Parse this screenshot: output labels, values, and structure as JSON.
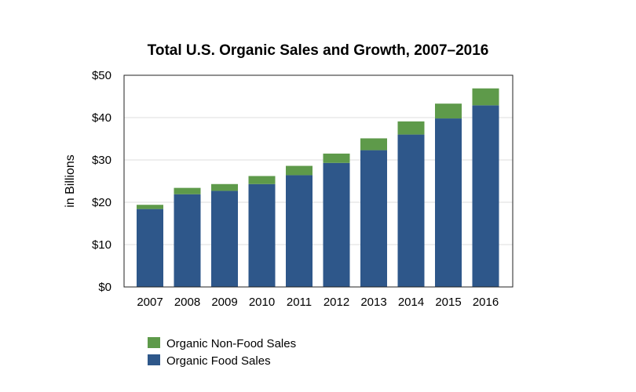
{
  "chart_data": {
    "type": "bar",
    "stacked": true,
    "title": "Total U.S. Organic Sales and Growth, 2007–2016",
    "xlabel": "",
    "ylabel": "in Billions",
    "ylim": [
      0,
      50
    ],
    "yticks": [
      0,
      10,
      20,
      30,
      40,
      50
    ],
    "ytick_labels": [
      "$0",
      "$10",
      "$20",
      "$30",
      "$40",
      "$50"
    ],
    "grid": true,
    "legend_position": "bottom-left",
    "categories": [
      "2007",
      "2008",
      "2009",
      "2010",
      "2011",
      "2012",
      "2013",
      "2014",
      "2015",
      "2016"
    ],
    "series": [
      {
        "name": "Organic Food Sales",
        "color": "#2e578a",
        "values": [
          18.4,
          21.9,
          22.7,
          24.3,
          26.4,
          29.3,
          32.3,
          36.0,
          39.8,
          42.9
        ]
      },
      {
        "name": "Organic Non-Food Sales",
        "color": "#5e9a4a",
        "values": [
          1.0,
          1.5,
          1.6,
          1.9,
          2.2,
          2.2,
          2.8,
          3.1,
          3.5,
          4.0
        ]
      }
    ]
  },
  "legend": {
    "items": [
      {
        "label": "Organic Non-Food Sales",
        "color": "#5e9a4a"
      },
      {
        "label": "Organic Food Sales",
        "color": "#2e578a"
      }
    ]
  }
}
